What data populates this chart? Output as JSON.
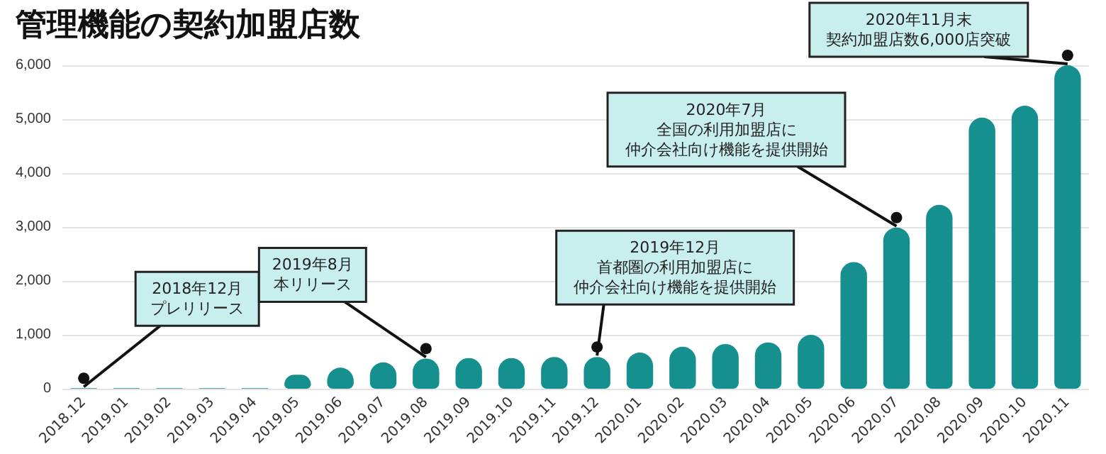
{
  "chart_data": {
    "type": "bar",
    "title": "管理機能の契約加盟店数",
    "categories": [
      "2018.12",
      "2019.01",
      "2019.02",
      "2019.03",
      "2019.04",
      "2019.05",
      "2019.06",
      "2019.07",
      "2019.08",
      "2019.09",
      "2019.10",
      "2019.11",
      "2019.12",
      "2020.01",
      "2020.02",
      "2020.03",
      "2020.04",
      "2020.05",
      "2020.06",
      "2020.07",
      "2020.08",
      "2020.09",
      "2020.10",
      "2020.11"
    ],
    "values": [
      10,
      10,
      10,
      10,
      10,
      260,
      390,
      490,
      560,
      570,
      570,
      590,
      590,
      670,
      780,
      830,
      860,
      1000,
      2350,
      2990,
      3410,
      5030,
      5250,
      6000
    ],
    "color": "#16908f",
    "ylim": [
      0,
      6000
    ],
    "yticks": [
      0,
      {
        "value": 1000,
        "label": "1,000"
      },
      {
        "value": 2000,
        "label": "2,000"
      },
      {
        "value": 3000,
        "label": "3,000"
      },
      {
        "value": 4000,
        "label": "4,000"
      },
      {
        "value": 5000,
        "label": "5,000"
      },
      {
        "value": 6000,
        "label": "6,000"
      }
    ],
    "grid": "y",
    "annotations": [
      {
        "text": "2018年12月プレリリース",
        "x": "2018.12",
        "y": 10
      },
      {
        "text": "2019年8月本リリース",
        "x": "2019.08",
        "y": 560
      },
      {
        "text": "2019年12月首都圏の利用加盟店に仲介会社向け機能を提供開始",
        "x": "2019.12",
        "y": 590
      },
      {
        "text": "2020年7月全国の利用加盟店に仲介会社向け機能を提供開始",
        "x": "2020.07",
        "y": 2990
      },
      {
        "text": "2020年11月末契約加盟店数6,000店突破",
        "x": "2020.11",
        "y": 6000
      }
    ]
  }
}
